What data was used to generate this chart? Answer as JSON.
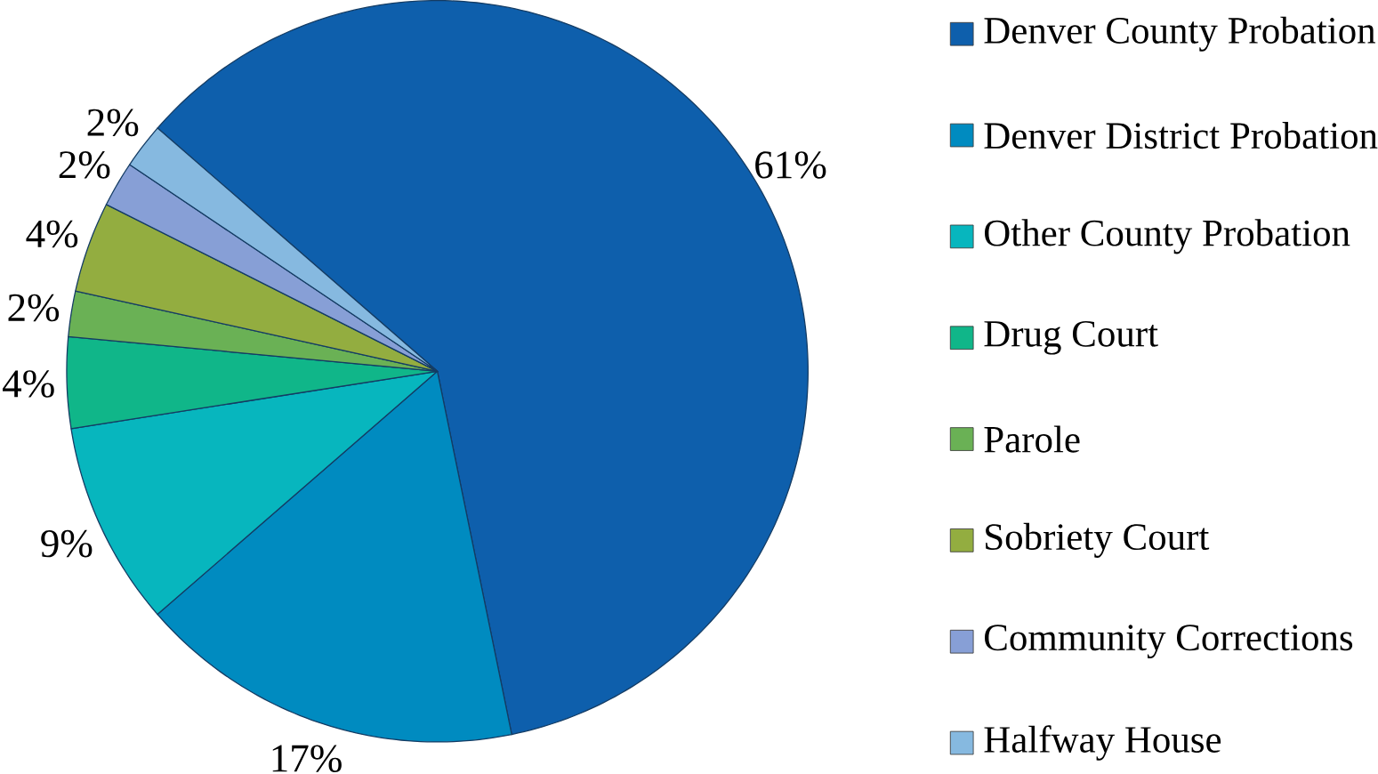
{
  "chart_data": {
    "type": "pie",
    "categories": [
      "Denver County Probation",
      "Denver District Probation",
      "Other County Probation",
      "Drug Court",
      "Parole",
      "Sobriety Court",
      "Community Corrections",
      "Halfway House"
    ],
    "values": [
      61,
      17,
      9,
      4,
      2,
      4,
      2,
      2
    ],
    "value_labels": [
      "61%",
      "17%",
      "9%",
      "4%",
      "2%",
      "4%",
      "2%",
      "2%"
    ],
    "colors": [
      "#0e5fac",
      "#008bc0",
      "#07b6be",
      "#10b689",
      "#6ab155",
      "#93ad40",
      "#879fd6",
      "#86b9e0"
    ],
    "legend": "right"
  }
}
